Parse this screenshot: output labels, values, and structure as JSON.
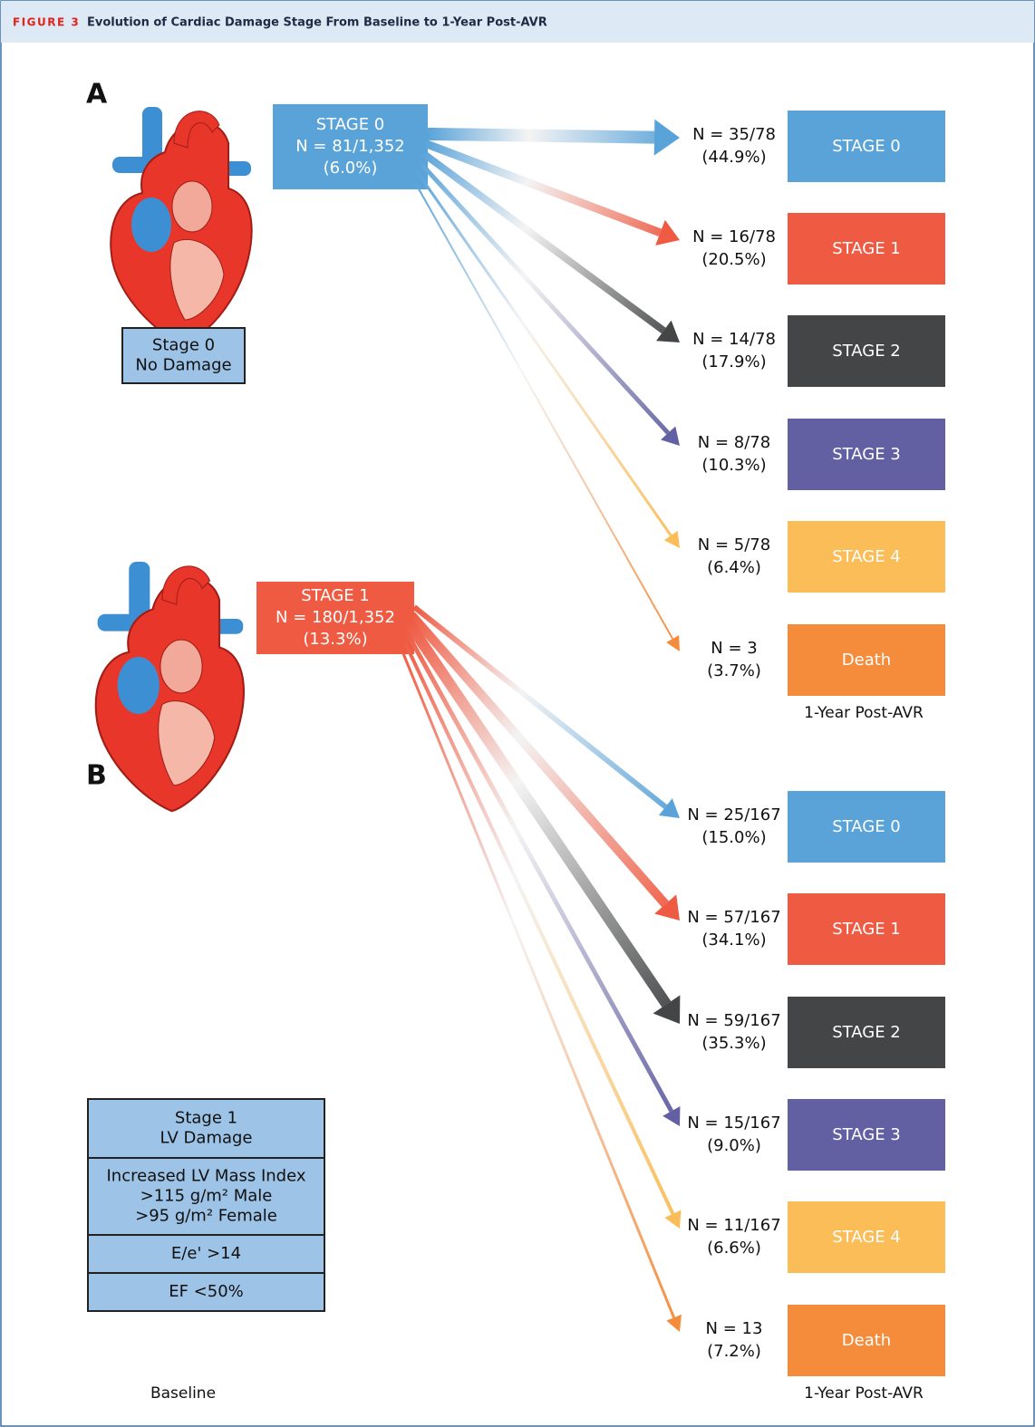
{
  "header": {
    "figure_label": "FIGURE 3",
    "title": "Evolution of Cardiac Damage Stage From Baseline to 1-Year Post-AVR"
  },
  "panels": [
    {
      "label": "A",
      "source": {
        "lines": [
          "STAGE 0",
          "N = 81/1,352",
          "(6.0%)"
        ],
        "color": "#5aa3d9"
      },
      "baseline_box": [
        [
          "Stage 0",
          "No Damage"
        ]
      ],
      "targets": [
        {
          "count": "N = 35/78",
          "percent": "(44.9%)",
          "label": "STAGE 0",
          "color": "#5aa3d9"
        },
        {
          "count": "N = 16/78",
          "percent": "(20.5%)",
          "label": "STAGE 1",
          "color": "#ef5a42"
        },
        {
          "count": "N = 14/78",
          "percent": "(17.9%)",
          "label": "STAGE 2",
          "color": "#444546"
        },
        {
          "count": "N = 8/78",
          "percent": "(10.3%)",
          "label": "STAGE 3",
          "color": "#6260a2"
        },
        {
          "count": "N = 5/78",
          "percent": "(6.4%)",
          "label": "STAGE 4",
          "color": "#fbbd57"
        },
        {
          "count": "N = 3",
          "percent": "(3.7%)",
          "label": "Death",
          "color": "#f58c3c"
        }
      ],
      "baseline_label": "Baseline",
      "followup_label": "1-Year Post-AVR"
    },
    {
      "label": "B",
      "source": {
        "lines": [
          "STAGE 1",
          "N = 180/1,352",
          "(13.3%)"
        ],
        "color": "#ef5a42"
      },
      "baseline_box": [
        [
          "Stage 1",
          "LV Damage"
        ],
        [
          "Increased LV Mass Index",
          ">115 g/m² Male",
          ">95 g/m² Female"
        ],
        [
          "E/e' >14"
        ],
        [
          "EF <50%"
        ]
      ],
      "targets": [
        {
          "count": "N = 25/167",
          "percent": "(15.0%)",
          "label": "STAGE 0",
          "color": "#5aa3d9"
        },
        {
          "count": "N = 57/167",
          "percent": "(34.1%)",
          "label": "STAGE 1",
          "color": "#ef5a42"
        },
        {
          "count": "N = 59/167",
          "percent": "(35.3%)",
          "label": "STAGE 2",
          "color": "#444546"
        },
        {
          "count": "N = 15/167",
          "percent": "(9.0%)",
          "label": "STAGE 3",
          "color": "#6260a2"
        },
        {
          "count": "N = 11/167",
          "percent": "(6.6%)",
          "label": "STAGE 4",
          "color": "#fbbd57"
        },
        {
          "count": "N = 13",
          "percent": "(7.2%)",
          "label": "Death",
          "color": "#f58c3c"
        }
      ],
      "baseline_label": "Baseline",
      "followup_label": "1-Year Post-AVR"
    }
  ]
}
